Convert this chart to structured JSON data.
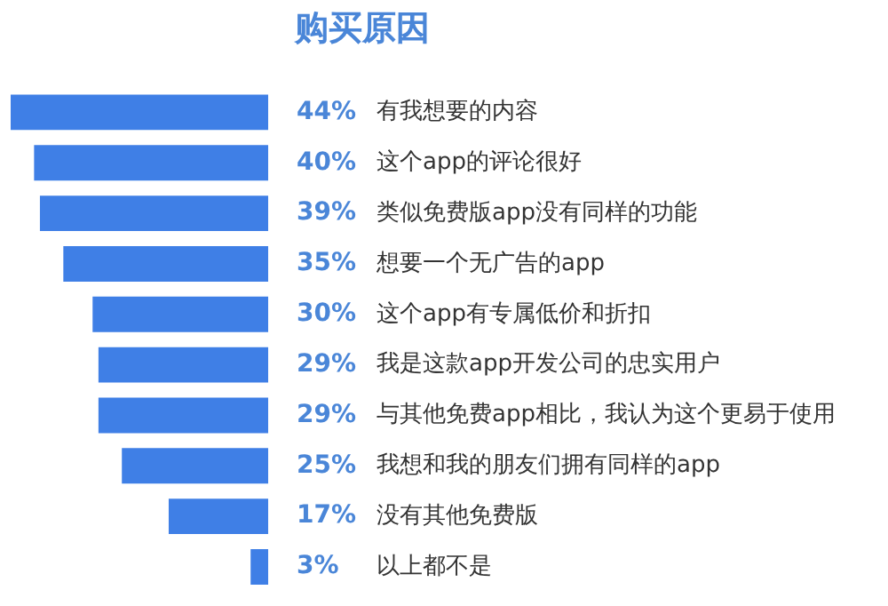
{
  "chart_data": {
    "type": "bar",
    "orientation": "horizontal",
    "title": "购买原因",
    "categories": [
      "有我想要的内容",
      "这个app的评论很好",
      "类似免费版app没有同样的功能",
      "想要一个无广告的app",
      "这个app有专属低价和折扣",
      "我是这款app开发公司的忠实用户",
      "与其他免费app相比，我认为这个更易于使用",
      "我想和我的朋友们拥有同样的app",
      "没有其他免费版",
      "以上都不是"
    ],
    "values": [
      44,
      40,
      39,
      35,
      30,
      29,
      29,
      25,
      17,
      3
    ],
    "value_labels": [
      "44%",
      "40%",
      "39%",
      "35%",
      "30%",
      "29%",
      "29%",
      "25%",
      "17%",
      "3%"
    ],
    "color": "#3f7fe6",
    "xlim": [
      44,
      0
    ],
    "tick_labels": "y",
    "legend": false
  }
}
